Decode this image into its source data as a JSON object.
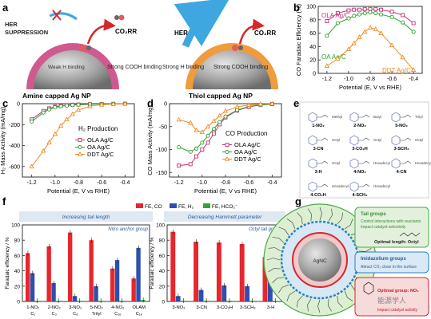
{
  "panel_a": {
    "letter": "a",
    "hint_hf": "HER",
    "hint_suppression": "SUPPRESSION",
    "amine_co2rr": "CO₂RR",
    "weak_h": "Weak H binding",
    "strong_cooh_1": "Strong COOH binding",
    "amine_label": "Amine capped Ag NP",
    "her": "HER",
    "thiol_co2rr": "CO₂RR",
    "strong_h": "Strong H binding",
    "strong_cooh_2": "Strong COOH binding",
    "thiol_label": "Thiol capped Ag NP",
    "colors": {
      "amine_shell": "#d05a8e",
      "thiol_shell": "#ef9b3e",
      "core": "#9a9a9a",
      "arrow_red": "#d8262b",
      "arrow_blue": "#3fa7df"
    }
  },
  "chart_data": [
    {
      "panel": "b",
      "type": "line",
      "ylabel": "CO Faradaic Efficiency (%)",
      "xlabel": "Potential (E, V vs RHE)",
      "xlim": [
        -1.28,
        -0.32
      ],
      "ylim": [
        0,
        100
      ],
      "xticks": [
        "-1.2",
        "-1.0",
        "-0.8",
        "-0.6",
        "-0.4"
      ],
      "yticks": [
        "0",
        "20",
        "40",
        "60",
        "80",
        "100"
      ],
      "reference_line": 100,
      "series": [
        {
          "name": "OLA Ag/C",
          "color": "#c8307a",
          "marker": "square",
          "x": [
            -1.2,
            -1.1,
            -1.0,
            -0.95,
            -0.9,
            -0.85,
            -0.8,
            -0.75,
            -0.7,
            -0.6,
            -0.5,
            -0.4
          ],
          "y": [
            78,
            90,
            94,
            95,
            95,
            96,
            96,
            96,
            95,
            92,
            87,
            75
          ]
        },
        {
          "name": "OA Ag/C",
          "color": "#2aa02a",
          "marker": "circle",
          "x": [
            -1.2,
            -1.1,
            -1.0,
            -0.95,
            -0.9,
            -0.85,
            -0.8,
            -0.75,
            -0.7,
            -0.6,
            -0.5,
            -0.4
          ],
          "y": [
            56,
            75,
            82,
            86,
            88,
            90,
            91,
            90,
            88,
            84,
            76,
            62
          ]
        },
        {
          "name": "DDT Ag/C",
          "color": "#f08a22",
          "marker": "triangle",
          "x": [
            -1.2,
            -1.1,
            -1.0,
            -0.95,
            -0.9,
            -0.85,
            -0.8,
            -0.75,
            -0.7,
            -0.6,
            -0.5,
            -0.4
          ],
          "y": [
            11,
            22,
            36,
            45,
            54,
            62,
            68,
            66,
            60,
            42,
            24,
            5
          ]
        }
      ]
    },
    {
      "panel": "c",
      "type": "line",
      "ylabel": "H₂ Mass Activity (mA/mg)",
      "xlabel": "Potential (E, V vs RHE)",
      "annotation": "H₂ Production",
      "xlim": [
        -1.28,
        -0.32
      ],
      "ylim": [
        -700,
        0
      ],
      "xticks": [
        "-1.2",
        "-1.0",
        "-0.8",
        "-0.6",
        "-0.4"
      ],
      "yticks": [
        "-600",
        "-400",
        "-200",
        "0"
      ],
      "series": [
        {
          "name": "OLA Ag/C",
          "color": "#c8307a",
          "marker": "square",
          "x": [
            -1.2,
            -1.1,
            -1.05,
            -1.0,
            -0.95,
            -0.9,
            -0.85,
            -0.8,
            -0.7,
            -0.6,
            -0.5,
            -0.4
          ],
          "y": [
            -150,
            -70,
            -45,
            -28,
            -20,
            -14,
            -10,
            -8,
            -5,
            -3,
            -2,
            -1
          ]
        },
        {
          "name": "OA Ag/C",
          "color": "#2aa02a",
          "marker": "circle",
          "x": [
            -1.2,
            -1.1,
            -1.05,
            -1.0,
            -0.95,
            -0.9,
            -0.85,
            -0.8,
            -0.7,
            -0.6,
            -0.5,
            -0.4
          ],
          "y": [
            -170,
            -85,
            -55,
            -35,
            -25,
            -18,
            -13,
            -10,
            -6,
            -4,
            -2,
            -1
          ]
        },
        {
          "name": "DDT Ag/C",
          "color": "#f08a22",
          "marker": "triangle",
          "x": [
            -1.2,
            -1.1,
            -1.05,
            -1.0,
            -0.95,
            -0.9,
            -0.85,
            -0.8,
            -0.7,
            -0.6,
            -0.5,
            -0.4
          ],
          "y": [
            -600,
            -450,
            -370,
            -290,
            -210,
            -150,
            -100,
            -60,
            -25,
            -10,
            -4,
            -1
          ]
        }
      ]
    },
    {
      "panel": "d",
      "type": "line",
      "ylabel": "CO Mass Activity (mA/mg)",
      "xlabel": "Potential (E, V vs RHE)",
      "annotation": "CO Production",
      "xlim": [
        -1.28,
        -0.32
      ],
      "ylim": [
        -160,
        0
      ],
      "xticks": [
        "-1.2",
        "-1.0",
        "-0.8",
        "-0.6",
        "-0.4"
      ],
      "yticks": [
        "-150",
        "-100",
        "-50",
        "0"
      ],
      "series": [
        {
          "name": "OLA Ag/C",
          "color": "#c8307a",
          "marker": "square",
          "x": [
            -1.2,
            -1.1,
            -1.05,
            -1.0,
            -0.95,
            -0.9,
            -0.85,
            -0.8,
            -0.7,
            -0.6,
            -0.5,
            -0.4
          ],
          "y": [
            -135,
            -132,
            -115,
            -100,
            -85,
            -65,
            -45,
            -30,
            -15,
            -7,
            -3,
            -1
          ]
        },
        {
          "name": "OA Ag/C",
          "color": "#2aa02a",
          "marker": "circle",
          "x": [
            -1.2,
            -1.1,
            -1.05,
            -1.0,
            -0.95,
            -0.9,
            -0.85,
            -0.8,
            -0.7,
            -0.6,
            -0.5,
            -0.4
          ],
          "y": [
            -95,
            -105,
            -98,
            -85,
            -70,
            -55,
            -40,
            -28,
            -14,
            -6,
            -3,
            -1
          ]
        },
        {
          "name": "DDT Ag/C",
          "color": "#f08a22",
          "marker": "triangle",
          "x": [
            -1.2,
            -1.1,
            -1.05,
            -1.0,
            -0.95,
            -0.9,
            -0.85,
            -0.8,
            -0.7,
            -0.6,
            -0.5,
            -0.4
          ],
          "y": [
            -35,
            -42,
            -58,
            -62,
            -50,
            -38,
            -26,
            -16,
            -7,
            -3,
            -1,
            0
          ]
        }
      ]
    },
    {
      "panel": "f-left",
      "type": "bar",
      "header": "Increasing tail length",
      "subheader": "Nitro anchor group",
      "ylabel": "Faradaic efficiency / %",
      "ylim": [
        0,
        100
      ],
      "yticks": [
        "0",
        "20",
        "40",
        "60",
        "80",
        "100"
      ],
      "categories": [
        "1-NO₂",
        "2-NO₂",
        "3-NO₂",
        "5-NO₂",
        "4-NO₂",
        "OLAM"
      ],
      "category_sublabels": [
        "C₁",
        "C₃",
        "C₈",
        "Trityl",
        "C₁₆",
        "C₁₈"
      ],
      "series": [
        {
          "name": "FE, CO",
          "color": "#e8262c",
          "values": [
            63,
            72,
            90,
            80,
            43,
            30
          ]
        },
        {
          "name": "FE, H₂",
          "color": "#2f4eb0",
          "values": [
            37,
            24,
            7,
            20,
            54,
            70
          ]
        },
        {
          "name": "FE, HCO₂⁻",
          "color": "#33a532",
          "values": [
            1,
            1,
            1,
            1,
            1,
            2
          ]
        }
      ]
    },
    {
      "panel": "f-right",
      "type": "bar",
      "header": "Decreasing Hammett parameter",
      "subheader": "Octyl tail group",
      "ylabel": "Faradaic efficiency / %",
      "ylim": [
        0,
        100
      ],
      "yticks": [
        "0",
        "20",
        "40",
        "60",
        "80",
        "100"
      ],
      "categories": [
        "3-NO₂",
        "3-CN",
        "3-CO₂H",
        "3-SCH₃",
        "3-H"
      ],
      "series": [
        {
          "name": "FE, CO",
          "color": "#e8262c",
          "values": [
            91,
            78,
            77,
            75,
            58
          ]
        },
        {
          "name": "FE, H₂",
          "color": "#2f4eb0",
          "values": [
            7,
            15,
            21,
            20,
            35
          ]
        },
        {
          "name": "FE, HCO₂⁻",
          "color": "#33a532",
          "values": [
            1,
            1,
            1,
            1,
            1
          ]
        }
      ]
    }
  ],
  "panel_letters": {
    "b": "b",
    "c": "c",
    "d": "d",
    "e": "e",
    "f": "f",
    "g": "g"
  },
  "legend_f": [
    "FE, CO",
    "FE, H₂",
    "FE, HCO₂⁻"
  ],
  "panel_e": {
    "molecules": [
      "1-NO₂",
      "2-NO₂",
      "5-NO₂",
      "3-CN",
      "3-CO₂H",
      "3-SCH₃",
      "3-H",
      "4-NO₂",
      "4-CN",
      "4-CO₂H",
      "4-SCH₃"
    ],
    "substituent_labels": [
      "Methyl",
      "Butyl",
      "Trityl",
      "Octyl",
      "Octyl",
      "Octyl",
      "Octyl",
      "Hexadecyl",
      "Hexadecyl",
      "Hexadecyl",
      "Hexadecyl"
    ]
  },
  "panel_g": {
    "core_label": "AgNC",
    "tail_title": "Tail groups",
    "tail_text": "Control interactions with reactants\nImpact catalyst selectivity",
    "optimal_length": "Optimal length: Octyl",
    "imid_title": "Imidazolium groups",
    "imid_text": "Attract CO₂ close to the surface",
    "anchor_title": "Optimal group: NO₂",
    "anchor_text": "Impact catalyst activity",
    "watermark": "能源学人"
  }
}
